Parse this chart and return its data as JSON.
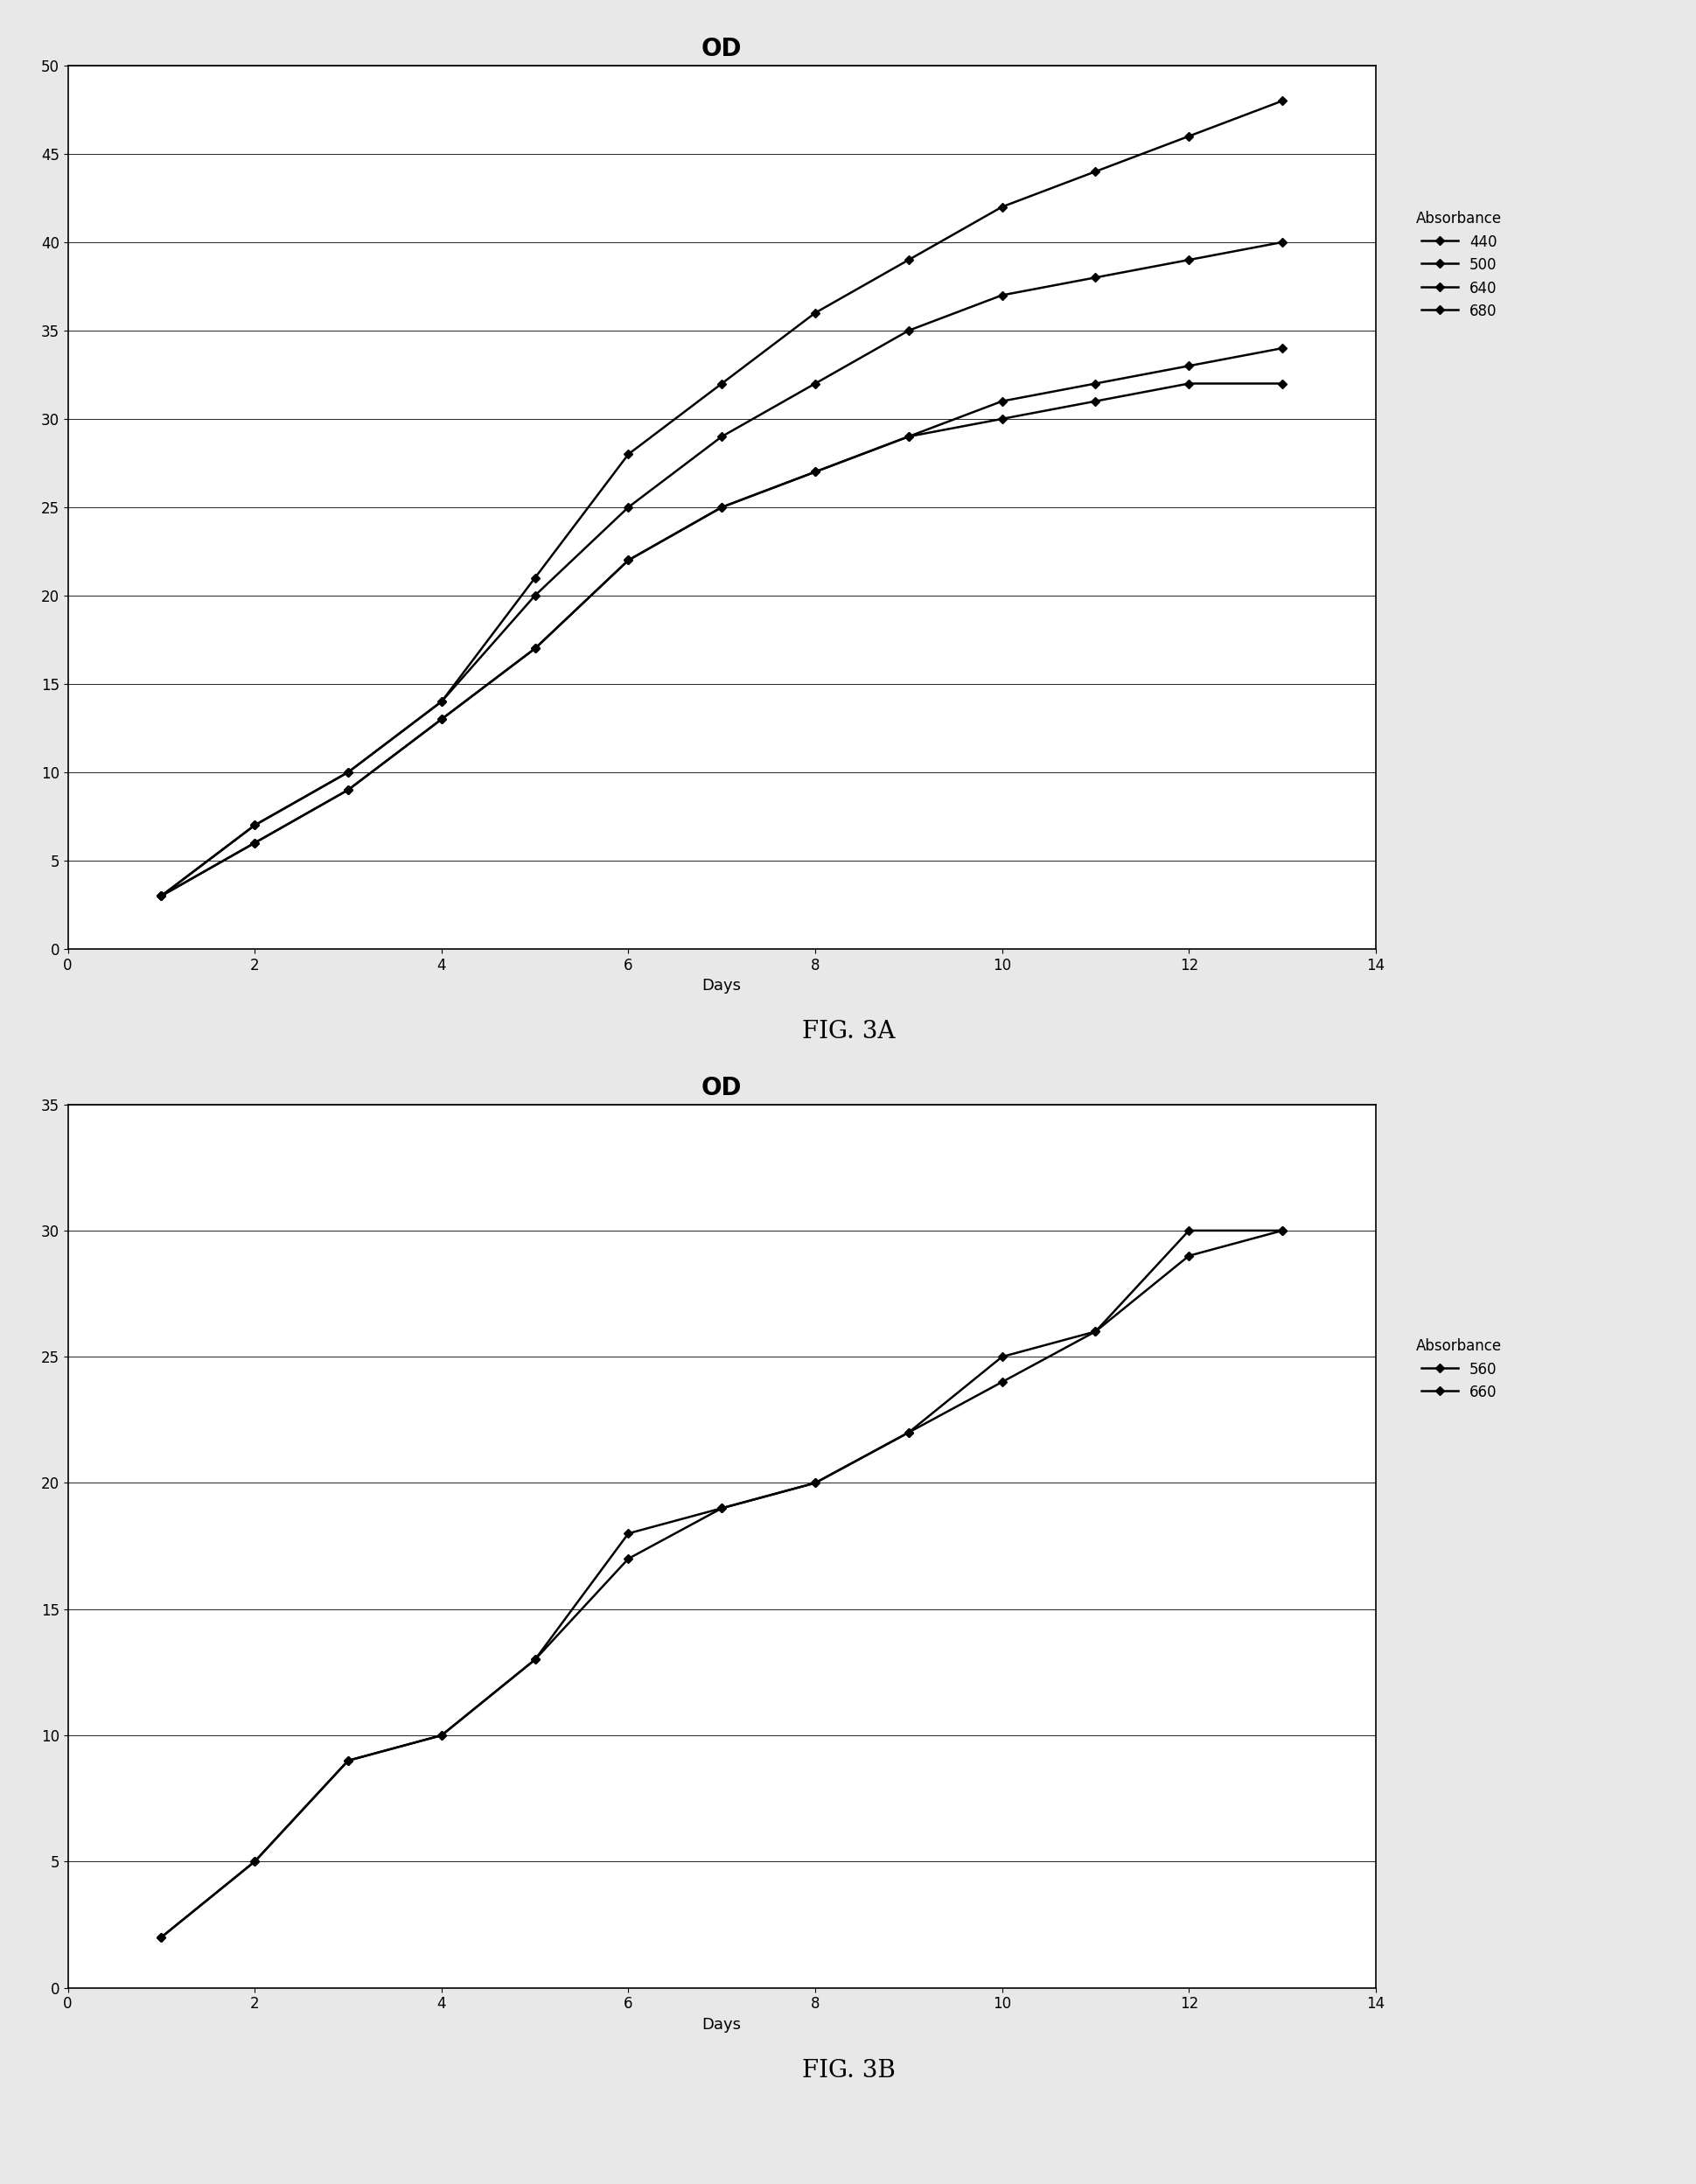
{
  "fig3a": {
    "title": "OD",
    "xlabel": "Days",
    "series": {
      "440": {
        "x": [
          1,
          2,
          3,
          4,
          5,
          6,
          7,
          8,
          9,
          10,
          11,
          12,
          13
        ],
        "y": [
          3,
          7,
          10,
          14,
          21,
          28,
          32,
          36,
          39,
          42,
          44,
          46,
          48
        ]
      },
      "500": {
        "x": [
          1,
          2,
          3,
          4,
          5,
          6,
          7,
          8,
          9,
          10,
          11,
          12,
          13
        ],
        "y": [
          3,
          7,
          10,
          14,
          20,
          25,
          29,
          32,
          35,
          37,
          38,
          39,
          40
        ]
      },
      "640": {
        "x": [
          1,
          2,
          3,
          4,
          5,
          6,
          7,
          8,
          9,
          10,
          11,
          12,
          13
        ],
        "y": [
          3,
          6,
          9,
          13,
          17,
          22,
          25,
          27,
          29,
          30,
          31,
          32,
          32
        ]
      },
      "680": {
        "x": [
          1,
          2,
          3,
          4,
          5,
          6,
          7,
          8,
          9,
          10,
          11,
          12,
          13
        ],
        "y": [
          3,
          6,
          9,
          13,
          17,
          22,
          25,
          27,
          29,
          31,
          32,
          33,
          34
        ]
      }
    },
    "ylim": [
      0,
      50
    ],
    "xlim": [
      0,
      14
    ],
    "yticks": [
      0,
      5,
      10,
      15,
      20,
      25,
      30,
      35,
      40,
      45,
      50
    ],
    "xticks": [
      0,
      2,
      4,
      6,
      8,
      10,
      12,
      14
    ],
    "legend_title": "Absorbance",
    "legend_labels": [
      "440",
      "500",
      "640",
      "680"
    ]
  },
  "fig3b": {
    "title": "OD",
    "xlabel": "Days",
    "series": {
      "560": {
        "x": [
          1,
          2,
          3,
          4,
          5,
          6,
          7,
          8,
          9,
          10,
          11,
          12,
          13
        ],
        "y": [
          2,
          5,
          9,
          10,
          13,
          17,
          19,
          20,
          22,
          24,
          26,
          29,
          30
        ]
      },
      "660": {
        "x": [
          1,
          2,
          3,
          4,
          5,
          6,
          7,
          8,
          9,
          10,
          11,
          12,
          13
        ],
        "y": [
          2,
          5,
          9,
          10,
          13,
          18,
          19,
          20,
          22,
          25,
          26,
          30,
          30
        ]
      }
    },
    "ylim": [
      0,
      35
    ],
    "xlim": [
      0,
      14
    ],
    "yticks": [
      0,
      5,
      10,
      15,
      20,
      25,
      30,
      35
    ],
    "xticks": [
      0,
      2,
      4,
      6,
      8,
      10,
      12,
      14
    ],
    "legend_title": "Absorbance",
    "legend_labels": [
      "560",
      "660"
    ]
  },
  "fig3a_label": "FIG. 3A",
  "fig3b_label": "FIG. 3B",
  "bg_color": "#ffffff",
  "outer_bg": "#e8e8e8",
  "line_color": "#000000",
  "marker": "D",
  "marker_size": 5,
  "linewidth": 1.8,
  "title_fontsize": 20,
  "label_fontsize": 13,
  "tick_fontsize": 12,
  "legend_fontsize": 12,
  "legend_title_fontsize": 12,
  "fig_label_fontsize": 20
}
